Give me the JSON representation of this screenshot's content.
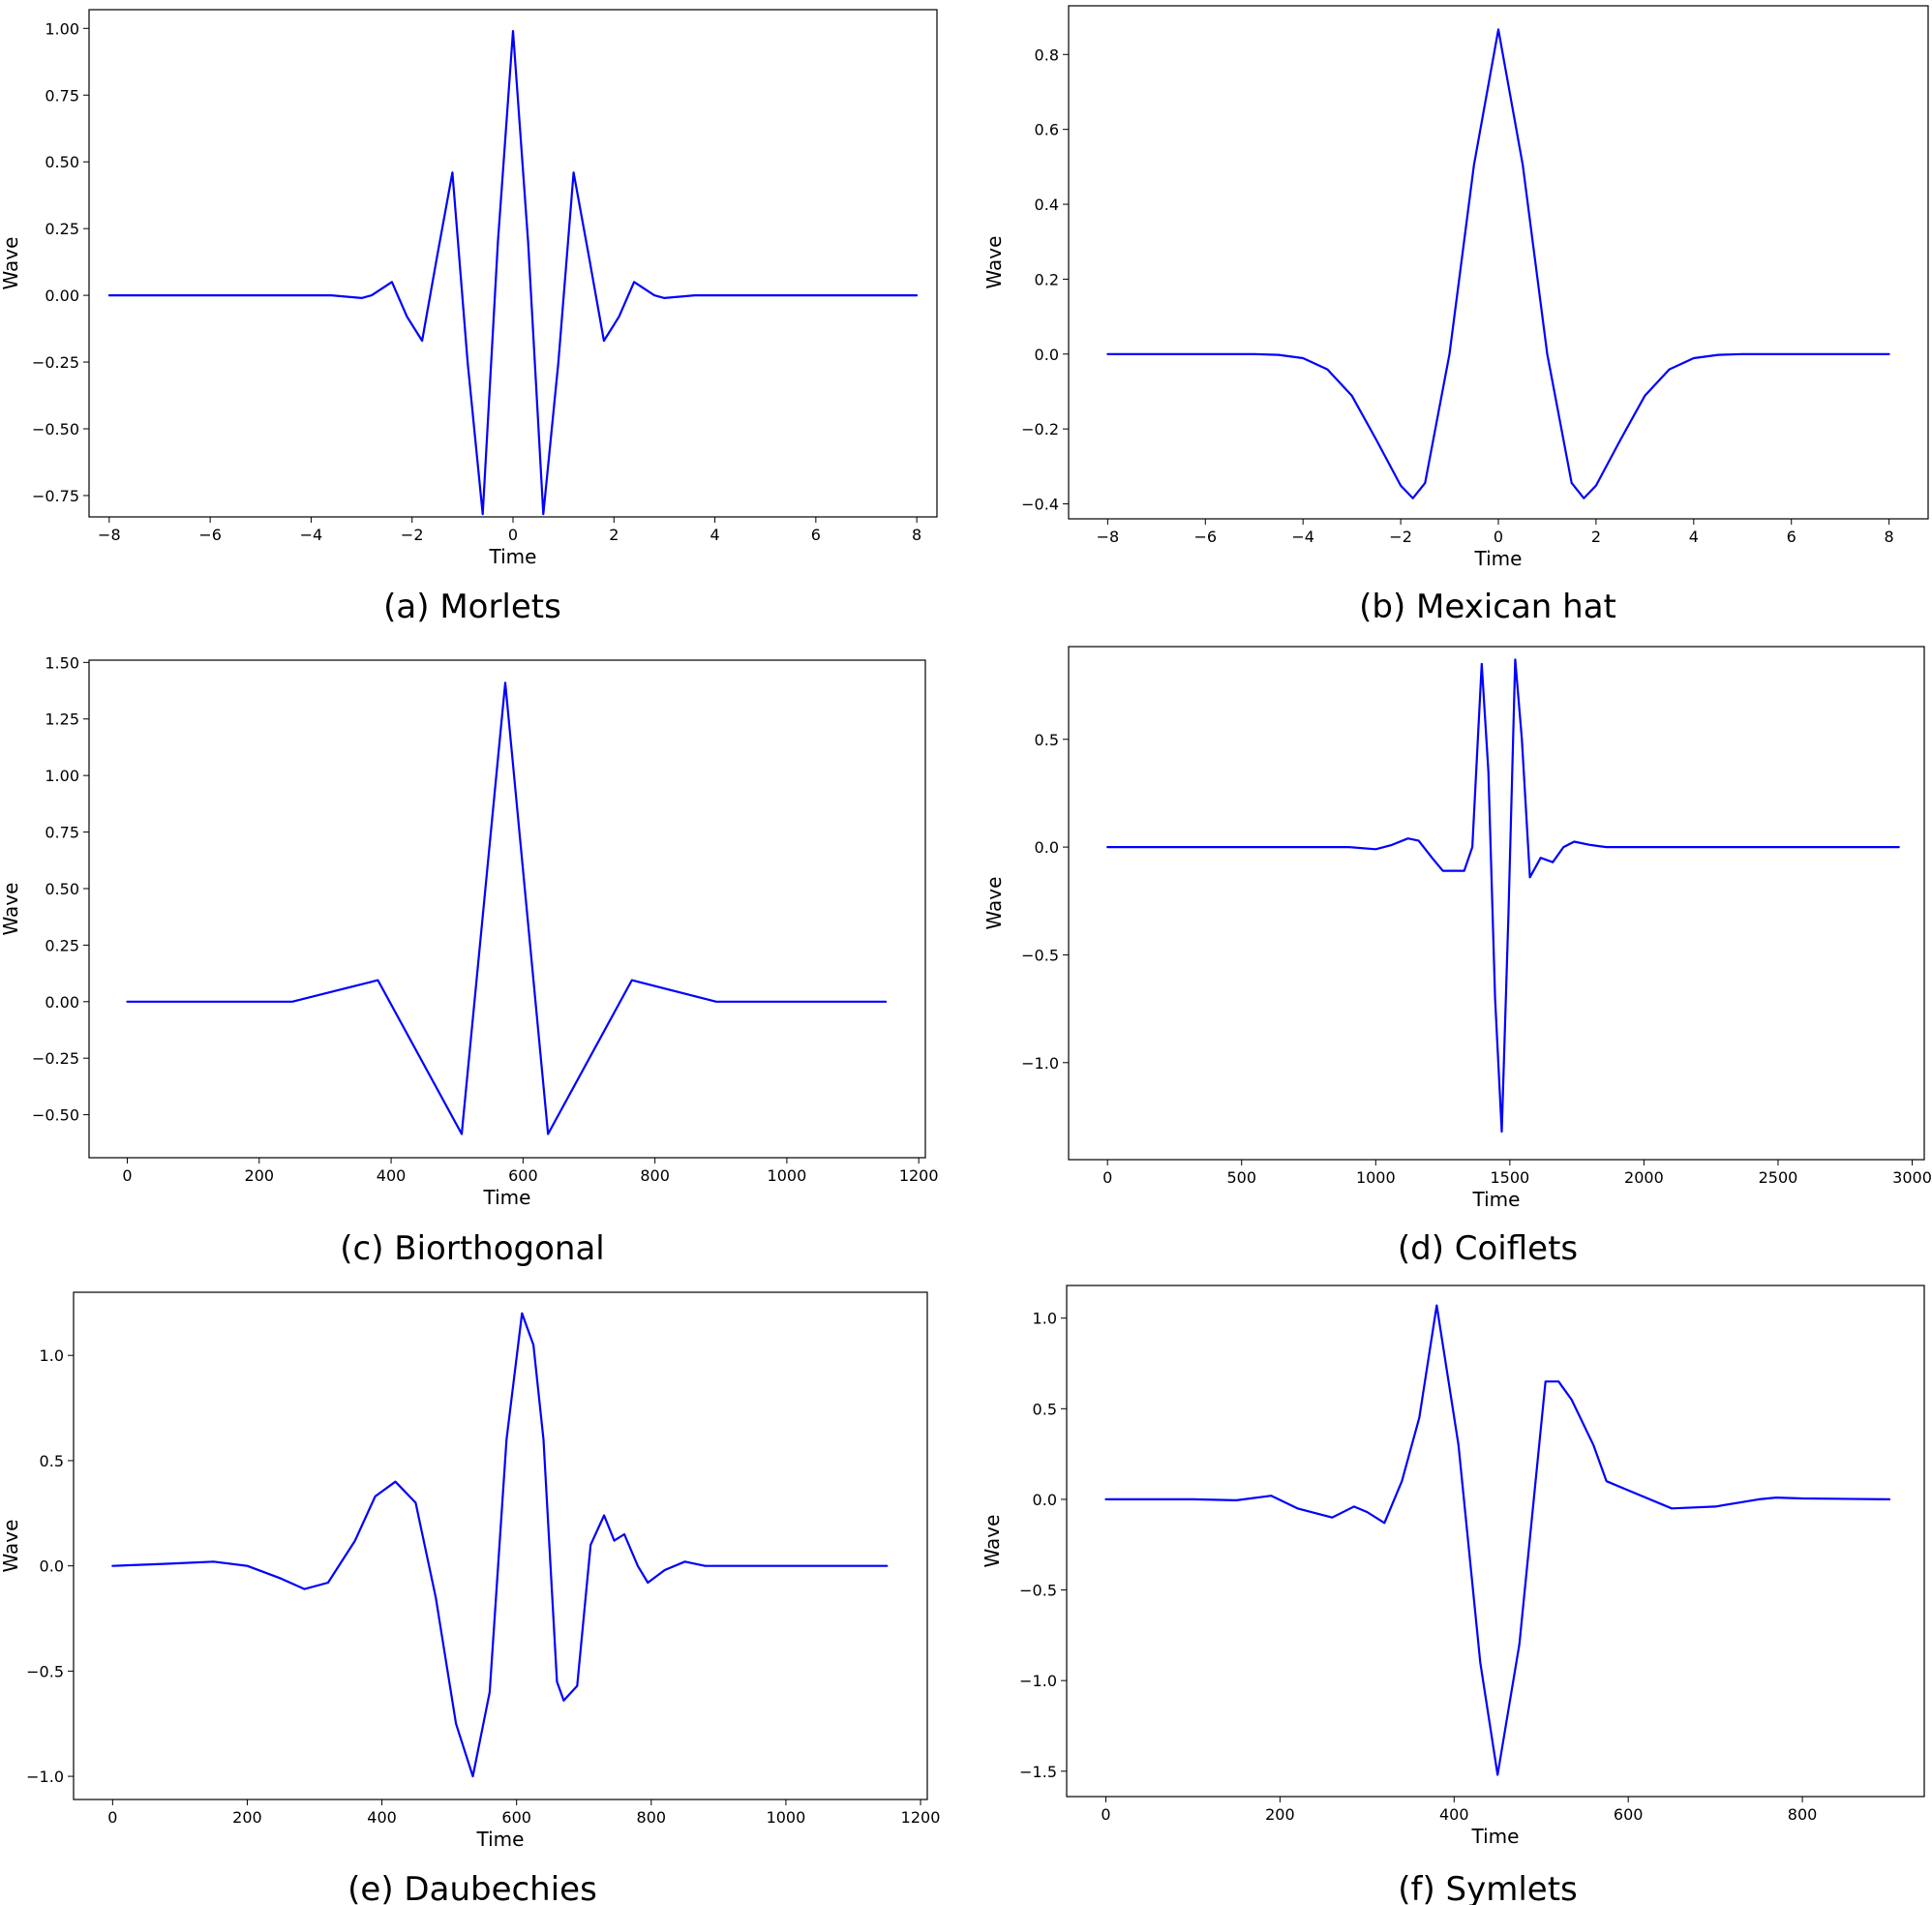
{
  "figure": {
    "captions": [
      "(a) Morlets",
      "(b) Mexican hat",
      "(c) Biorthogonal",
      "(d) Coiflets",
      "(e) Daubechies",
      "(f) Symlets"
    ]
  },
  "chart_data": [
    {
      "id": "a",
      "type": "line",
      "caption": "(a) Morlets",
      "xlabel": "Time",
      "ylabel": "Wave",
      "xlim": [
        -8.4,
        8.4
      ],
      "ylim": [
        -0.83,
        1.07
      ],
      "xticks": [
        -8,
        -6,
        -4,
        -2,
        0,
        2,
        4,
        6,
        8
      ],
      "xticklabels": [
        "−8",
        "−6",
        "−4",
        "−2",
        "0",
        "2",
        "4",
        "6",
        "8"
      ],
      "yticks": [
        -0.75,
        -0.5,
        -0.25,
        0.0,
        0.25,
        0.5,
        0.75,
        1.0
      ],
      "yticklabels": [
        "−0.75",
        "−0.50",
        "−0.25",
        "0.00",
        "0.25",
        "0.50",
        "0.75",
        "1.00"
      ],
      "color": "#0000ff",
      "series": [
        {
          "x": [
            -8,
            -3.6,
            -3.0,
            -2.8,
            -2.4,
            -2.1,
            -1.8,
            -1.5,
            -1.2,
            -0.9,
            -0.6,
            -0.3,
            0,
            0.3,
            0.6,
            0.9,
            1.2,
            1.5,
            1.8,
            2.1,
            2.4,
            2.8,
            3.0,
            3.6,
            8
          ],
          "y": [
            0,
            0,
            -0.01,
            0.0,
            0.05,
            -0.08,
            -0.17,
            0.15,
            0.46,
            -0.25,
            -0.82,
            0.2,
            0.99,
            0.2,
            -0.82,
            -0.25,
            0.46,
            0.15,
            -0.17,
            -0.08,
            0.05,
            0.0,
            -0.01,
            0,
            0
          ]
        }
      ]
    },
    {
      "id": "b",
      "type": "line",
      "caption": "(b) Mexican hat",
      "xlabel": "Time",
      "ylabel": "Wave",
      "xlim": [
        -8.8,
        8.8
      ],
      "ylim": [
        -0.44,
        0.93
      ],
      "xticks": [
        -8,
        -6,
        -4,
        -2,
        0,
        2,
        4,
        6,
        8
      ],
      "xticklabels": [
        "−8",
        "−6",
        "−4",
        "−2",
        "0",
        "2",
        "4",
        "6",
        "8"
      ],
      "yticks": [
        -0.4,
        -0.2,
        0.0,
        0.2,
        0.4,
        0.6,
        0.8
      ],
      "yticklabels": [
        "−0.4",
        "−0.2",
        "0.0",
        "0.2",
        "0.4",
        "0.6",
        "0.8"
      ],
      "color": "#0000ff",
      "series": [
        {
          "x": [
            -8,
            -5,
            -4.5,
            -4,
            -3.5,
            -3,
            -2.5,
            -2,
            -1.75,
            -1.5,
            -1,
            -0.5,
            0,
            0.5,
            1,
            1.5,
            1.75,
            2,
            2.5,
            3,
            3.5,
            4,
            4.5,
            5,
            8
          ],
          "y": [
            0,
            0,
            -0.002,
            -0.011,
            -0.041,
            -0.111,
            -0.229,
            -0.351,
            -0.385,
            -0.344,
            0.0,
            0.505,
            0.867,
            0.505,
            0.0,
            -0.344,
            -0.385,
            -0.351,
            -0.229,
            -0.111,
            -0.041,
            -0.011,
            -0.002,
            0,
            0
          ]
        }
      ]
    },
    {
      "id": "c",
      "type": "line",
      "caption": "(c) Biorthogonal",
      "xlabel": "Time",
      "ylabel": "Wave",
      "xlim": [
        -58,
        1210
      ],
      "ylim": [
        -0.69,
        1.51
      ],
      "xticks": [
        0,
        200,
        400,
        600,
        800,
        1000,
        1200
      ],
      "xticklabels": [
        "0",
        "200",
        "400",
        "600",
        "800",
        "1000",
        "1200"
      ],
      "yticks": [
        -0.5,
        -0.25,
        0.0,
        0.25,
        0.5,
        0.75,
        1.0,
        1.25,
        1.5
      ],
      "yticklabels": [
        "−0.50",
        "−0.25",
        "0.00",
        "0.25",
        "0.50",
        "0.75",
        "1.00",
        "1.25",
        "1.50"
      ],
      "color": "#0000ff",
      "series": [
        {
          "x": [
            0,
            250,
            380,
            507,
            573,
            638,
            765,
            893,
            1150
          ],
          "y": [
            0,
            0,
            0.095,
            -0.585,
            1.41,
            -0.585,
            0.095,
            0,
            0
          ]
        }
      ]
    },
    {
      "id": "d",
      "type": "line",
      "caption": "(d) Coiflets",
      "xlabel": "Time",
      "ylabel": "Wave",
      "xlim": [
        -145,
        3045
      ],
      "ylim": [
        -1.45,
        0.93
      ],
      "xticks": [
        0,
        500,
        1000,
        1500,
        2000,
        2500,
        3000
      ],
      "xticklabels": [
        "0",
        "500",
        "1000",
        "1500",
        "2000",
        "2500",
        "3000"
      ],
      "yticks": [
        -1.0,
        -0.5,
        0.0,
        0.5
      ],
      "yticklabels": [
        "−1.0",
        "−0.5",
        "0.0",
        "0.5"
      ],
      "color": "#0000ff",
      "series": [
        {
          "x": [
            0,
            900,
            1000,
            1060,
            1120,
            1160,
            1210,
            1250,
            1290,
            1330,
            1360,
            1395,
            1420,
            1445,
            1470,
            1495,
            1520,
            1545,
            1575,
            1615,
            1660,
            1700,
            1740,
            1800,
            1860,
            2000,
            2950
          ],
          "y": [
            0,
            0,
            -0.01,
            0.01,
            0.04,
            0.03,
            -0.05,
            -0.11,
            -0.11,
            -0.11,
            0.0,
            0.85,
            0.35,
            -0.7,
            -1.32,
            -0.3,
            0.87,
            0.5,
            -0.14,
            -0.05,
            -0.07,
            0.0,
            0.025,
            0.01,
            0,
            0,
            0
          ]
        }
      ]
    },
    {
      "id": "e",
      "type": "line",
      "caption": "(e) Daubechies",
      "xlabel": "Time",
      "ylabel": "Wave",
      "xlim": [
        -58,
        1210
      ],
      "ylim": [
        -1.11,
        1.3
      ],
      "xticks": [
        0,
        200,
        400,
        600,
        800,
        1000,
        1200
      ],
      "xticklabels": [
        "0",
        "200",
        "400",
        "600",
        "800",
        "1000",
        "1200"
      ],
      "yticks": [
        -1.0,
        -0.5,
        0.0,
        0.5,
        1.0
      ],
      "yticklabels": [
        "−1.0",
        "−0.5",
        "0.0",
        "0.5",
        "1.0"
      ],
      "color": "#0000ff",
      "series": [
        {
          "x": [
            0,
            80,
            150,
            200,
            250,
            285,
            320,
            360,
            390,
            420,
            450,
            480,
            510,
            535,
            560,
            585,
            608,
            625,
            640,
            660,
            670,
            690,
            710,
            730,
            745,
            760,
            780,
            795,
            820,
            850,
            880,
            1150
          ],
          "y": [
            0,
            0.01,
            0.02,
            0.0,
            -0.06,
            -0.11,
            -0.08,
            0.12,
            0.33,
            0.4,
            0.3,
            -0.15,
            -0.75,
            -1.0,
            -0.6,
            0.6,
            1.2,
            1.05,
            0.6,
            -0.55,
            -0.64,
            -0.57,
            0.1,
            0.24,
            0.12,
            0.15,
            0.0,
            -0.08,
            -0.02,
            0.02,
            0,
            0
          ]
        }
      ]
    },
    {
      "id": "f",
      "type": "line",
      "caption": "(f) Symlets",
      "xlabel": "Time",
      "ylabel": "Wave",
      "xlim": [
        -45,
        940
      ],
      "ylim": [
        -1.64,
        1.18
      ],
      "xticks": [
        0,
        200,
        400,
        600,
        800
      ],
      "xticklabels": [
        "0",
        "200",
        "400",
        "600",
        "800"
      ],
      "yticks": [
        -1.5,
        -1.0,
        -0.5,
        0.0,
        0.5,
        1.0
      ],
      "yticklabels": [
        "−1.5",
        "−1.0",
        "−0.5",
        "0.0",
        "0.5",
        "1.0"
      ],
      "color": "#0000ff",
      "series": [
        {
          "x": [
            0,
            100,
            150,
            190,
            220,
            260,
            285,
            300,
            320,
            340,
            360,
            380,
            405,
            430,
            450,
            475,
            505,
            520,
            535,
            560,
            575,
            600,
            650,
            700,
            750,
            770,
            800,
            900
          ],
          "y": [
            0,
            0,
            -0.005,
            0.02,
            -0.05,
            -0.1,
            -0.04,
            -0.07,
            -0.13,
            0.1,
            0.45,
            1.07,
            0.3,
            -0.9,
            -1.52,
            -0.8,
            0.65,
            0.65,
            0.55,
            0.3,
            0.1,
            0.05,
            -0.05,
            -0.04,
            0.0,
            0.01,
            0.005,
            0
          ]
        }
      ]
    }
  ]
}
